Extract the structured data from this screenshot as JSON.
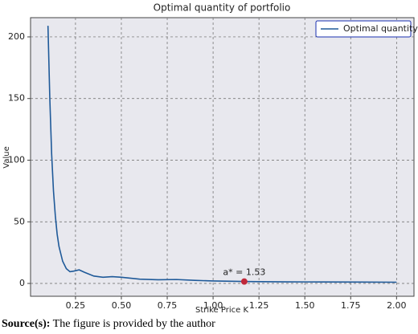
{
  "chart_data": {
    "type": "line",
    "title": "Optimal quantity of portfolio",
    "x_label": "Strike Price K",
    "y_label": "Value",
    "x": [
      0.1,
      0.11,
      0.12,
      0.13,
      0.14,
      0.15,
      0.16,
      0.18,
      0.2,
      0.22,
      0.24,
      0.27,
      0.3,
      0.35,
      0.4,
      0.45,
      0.5,
      0.6,
      0.7,
      0.8,
      0.9,
      1.0,
      1.1,
      1.2,
      1.4,
      1.6,
      1.8,
      2.0
    ],
    "series": [
      {
        "name": "Optimal quantity",
        "color": "#1f5a99",
        "values": [
          209,
          150,
          105,
          75,
          55,
          40,
          30,
          18,
          12,
          9.5,
          10,
          11,
          9,
          6,
          5,
          5.5,
          5,
          3.5,
          3,
          3.2,
          2.5,
          2,
          1.8,
          1.5,
          1.3,
          1.2,
          1.1,
          1.0
        ]
      }
    ],
    "annotations": [
      {
        "text": "a* = 1.53",
        "x": 1.17,
        "y": 1.53,
        "color": "#c0283a"
      }
    ],
    "xlim": [
      0.005,
      2.095
    ],
    "ylim": [
      -10.4,
      215.6
    ],
    "xticks": [
      0.25,
      {
        "value": 0.5,
        "label": "0.50"
      },
      0.75,
      {
        "value": 1,
        "label": "1.00"
      },
      1.25,
      {
        "value": 1.5,
        "label": "1.50"
      },
      1.75,
      {
        "value": 2,
        "label": "2.00"
      }
    ],
    "yticks": [
      0,
      50,
      100,
      150,
      200
    ],
    "grid": true,
    "legend": "upper right"
  },
  "source": {
    "label": "Source(s):",
    "text": "The figure is provided by the author"
  }
}
